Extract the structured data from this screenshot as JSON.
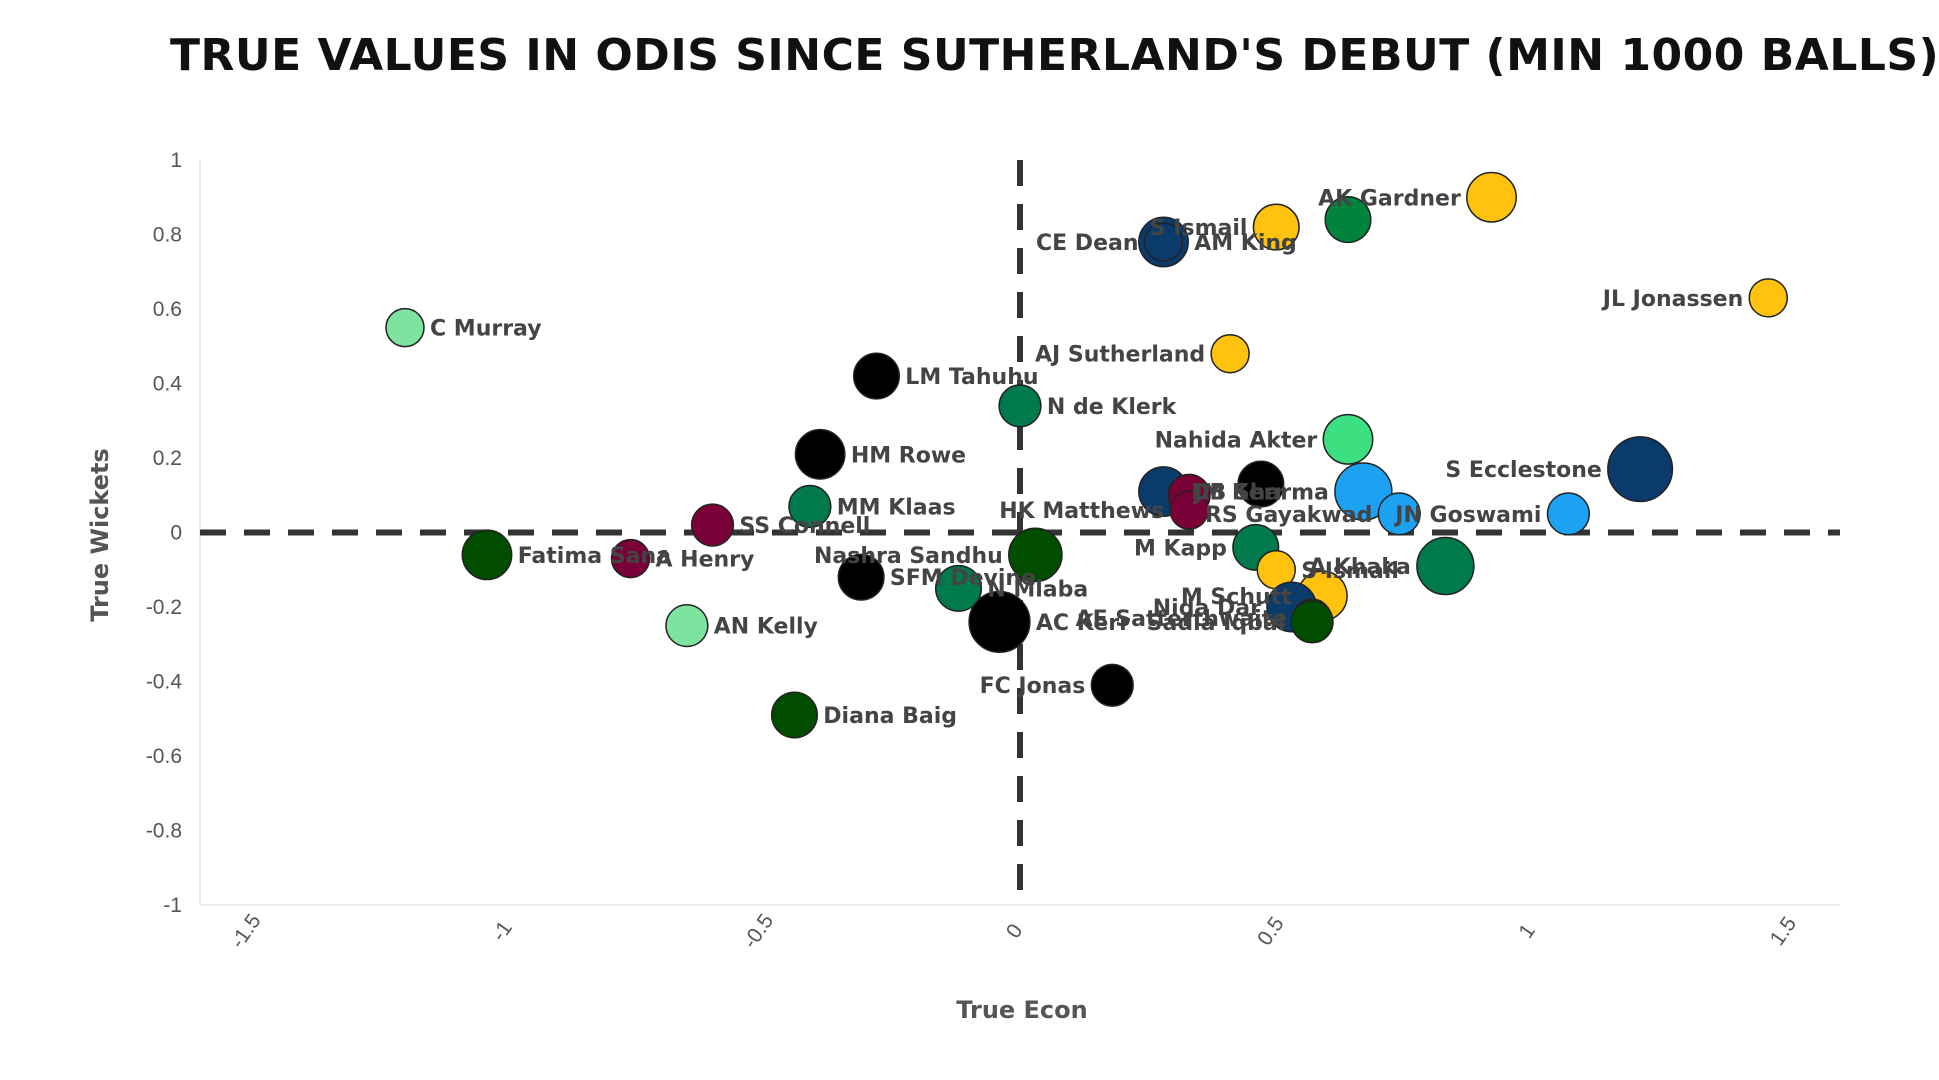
{
  "chart_data": {
    "type": "scatter",
    "title": "TRUE VALUES IN ODIS SINCE SUTHERLAND'S DEBUT (MIN 1000 BALLS)",
    "xlabel": "True Econ",
    "ylabel": "True Wickets",
    "xlim": [
      -1.6,
      1.6
    ],
    "ylim": [
      -1,
      1
    ],
    "xticks": [
      "-1.5",
      "-1",
      "-0.5",
      "0",
      "0.5",
      "1",
      "1.5"
    ],
    "yticks": [
      "1",
      "0.8",
      "0.6",
      "0.4",
      "0.2",
      "0",
      "-0.2",
      "-0.4",
      "-0.6",
      "-0.8",
      "-1"
    ],
    "reference_lines": [
      {
        "axis": "x",
        "value": 0
      },
      {
        "axis": "y",
        "value": 0
      }
    ],
    "grid": false,
    "legend": "none",
    "points": [
      {
        "label": "AK Gardner",
        "x": 0.92,
        "y": 0.9,
        "size": 1.3,
        "color": "#FFC20E",
        "anchor": "left"
      },
      {
        "label": "S Ismail",
        "x": 0.5,
        "y": 0.82,
        "size": 1.2,
        "color": "#FFC20E",
        "anchor": "left"
      },
      {
        "label": "",
        "x": 0.64,
        "y": 0.84,
        "size": 1.2,
        "color": "#00843D"
      },
      {
        "label": "AM King",
        "x": 0.28,
        "y": 0.78,
        "size": 1.3,
        "color": "#0B3B6B",
        "anchor": "right"
      },
      {
        "label": "CE Dean",
        "x": 0.28,
        "y": 0.78,
        "size": 1.0,
        "color": "#0B3B6B",
        "anchor": "left",
        "hidden": true
      },
      {
        "label": "JL Jonassen",
        "x": 1.46,
        "y": 0.63,
        "size": 1.0,
        "color": "#FFC20E",
        "anchor": "left"
      },
      {
        "label": "C Murray",
        "x": -1.2,
        "y": 0.55,
        "size": 1.0,
        "color": "#7FE3A0",
        "anchor": "right"
      },
      {
        "label": "AJ Sutherland",
        "x": 0.41,
        "y": 0.48,
        "size": 1.0,
        "color": "#FFC20E",
        "anchor": "left"
      },
      {
        "label": "LM Tahuhu",
        "x": -0.28,
        "y": 0.42,
        "size": 1.2,
        "color": "#000000",
        "anchor": "right"
      },
      {
        "label": "N de Klerk",
        "x": 0.0,
        "y": 0.34,
        "size": 1.1,
        "color": "#007A4D",
        "anchor": "right"
      },
      {
        "label": "Nahida Akter",
        "x": 0.64,
        "y": 0.25,
        "size": 1.3,
        "color": "#3CE080",
        "anchor": "left"
      },
      {
        "label": "HM Rowe",
        "x": -0.39,
        "y": 0.21,
        "size": 1.3,
        "color": "#000000",
        "anchor": "right"
      },
      {
        "label": "S Ecclestone",
        "x": 1.21,
        "y": 0.17,
        "size": 1.7,
        "color": "#0B3B6B",
        "anchor": "left"
      },
      {
        "label": "JM Kerr",
        "x": 0.28,
        "y": 0.11,
        "size": 1.3,
        "color": "#0B3B6B",
        "anchor": "right"
      },
      {
        "label": "",
        "x": 0.33,
        "y": 0.1,
        "size": 1.1,
        "color": "#7A0038"
      },
      {
        "label": "",
        "x": 0.47,
        "y": 0.13,
        "size": 1.2,
        "color": "#000000"
      },
      {
        "label": "DB Sharma",
        "x": 0.67,
        "y": 0.11,
        "size": 1.5,
        "color": "#1DA1F2",
        "anchor": "left"
      },
      {
        "label": "HK Matthews",
        "x": 0.33,
        "y": 0.06,
        "size": 1.0,
        "color": "#7A0038",
        "anchor": "left"
      },
      {
        "label": "RS Gayakwad",
        "x": 0.74,
        "y": 0.05,
        "size": 1.1,
        "color": "#1DA1F2",
        "anchor": "left"
      },
      {
        "label": "JN Goswami",
        "x": 1.07,
        "y": 0.05,
        "size": 1.1,
        "color": "#1DA1F2",
        "anchor": "left"
      },
      {
        "label": "MM Klaas",
        "x": -0.41,
        "y": 0.07,
        "size": 1.1,
        "color": "#007A4D",
        "anchor": "right"
      },
      {
        "label": "SS Connell",
        "x": -0.6,
        "y": 0.02,
        "size": 1.1,
        "color": "#7A0038",
        "anchor": "right"
      },
      {
        "label": "Fatima Sana",
        "x": -1.04,
        "y": -0.06,
        "size": 1.3,
        "color": "#004D00",
        "anchor": "right"
      },
      {
        "label": "A Henry",
        "x": -0.76,
        "y": -0.07,
        "size": 1.0,
        "color": "#7A0038",
        "anchor": "right"
      },
      {
        "label": "Nashra Sandhu",
        "x": 0.03,
        "y": -0.06,
        "size": 1.4,
        "color": "#004D00",
        "anchor": "left"
      },
      {
        "label": "M Kapp",
        "x": 0.46,
        "y": -0.04,
        "size": 1.2,
        "color": "#007A4D",
        "anchor": "left"
      },
      {
        "label": "A Khaka",
        "x": 0.83,
        "y": -0.09,
        "size": 1.5,
        "color": "#007A4D",
        "anchor": "left"
      },
      {
        "label": "S Ismail",
        "x": 0.5,
        "y": -0.1,
        "size": 0.0,
        "color": "#FFC20E",
        "hidden": true
      },
      {
        "label": "SFM Devine",
        "x": -0.31,
        "y": -0.12,
        "size": 1.2,
        "color": "#000000",
        "anchor": "right"
      },
      {
        "label": "N Mlaba",
        "x": -0.12,
        "y": -0.15,
        "size": 1.2,
        "color": "#007A4D",
        "anchor": "right"
      },
      {
        "label": "M Schutt",
        "x": 0.59,
        "y": -0.17,
        "size": 1.3,
        "color": "#FFC20E",
        "anchor": "left"
      },
      {
        "label": "Nida Dar",
        "x": 0.53,
        "y": -0.2,
        "size": 1.3,
        "color": "#0B3B6B",
        "anchor": "left"
      },
      {
        "label": "AE Satterthwaite",
        "x": 0.57,
        "y": -0.23,
        "size": 1.0,
        "color": "#004D00",
        "anchor": "left"
      },
      {
        "label": "AC Kerr",
        "x": -0.04,
        "y": -0.24,
        "size": 1.6,
        "color": "#000000",
        "anchor": "right"
      },
      {
        "label": "Sadia Iqbal",
        "x": 0.57,
        "y": -0.24,
        "size": 1.1,
        "color": "#004D00",
        "anchor": "left"
      },
      {
        "label": "AN Kelly",
        "x": -0.65,
        "y": -0.25,
        "size": 1.1,
        "color": "#7FE3A0",
        "anchor": "right"
      },
      {
        "label": "FC Jonas",
        "x": 0.18,
        "y": -0.41,
        "size": 1.1,
        "color": "#000000",
        "anchor": "left"
      },
      {
        "label": "Diana Baig",
        "x": -0.44,
        "y": -0.49,
        "size": 1.2,
        "color": "#004D00",
        "anchor": "right"
      }
    ]
  }
}
